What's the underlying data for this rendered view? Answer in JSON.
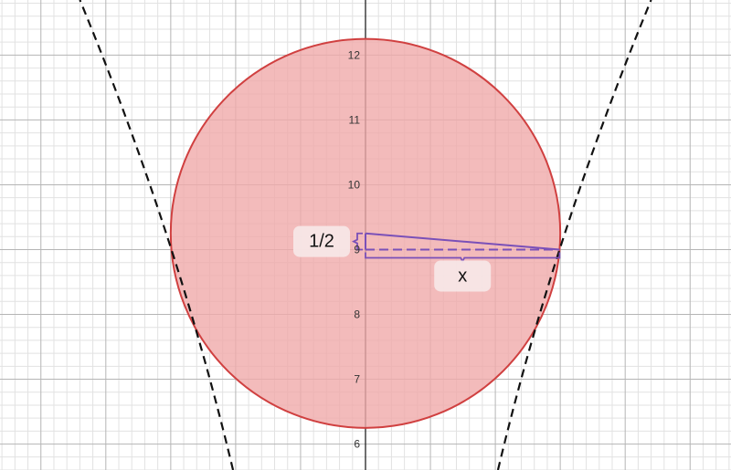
{
  "graph": {
    "y_tick_labels": [
      "6",
      "7",
      "8",
      "9",
      "10",
      "11",
      "12"
    ],
    "y_axis_range": [
      5.6,
      12.85
    ],
    "x_axis_range": [
      -5.63,
      5.63
    ],
    "major_grid_step": 1,
    "minor_grid_step": 0.2
  },
  "circle": {
    "center": [
      0,
      9.25
    ],
    "radius": 3,
    "fill_color": "#f0aaaa",
    "stroke_color": "#d04040"
  },
  "dashed_curves": {
    "color": "#111111",
    "style": "dashed"
  },
  "triangle": {
    "color": "#7a50b8"
  },
  "labels": {
    "half_label": "1/2",
    "x_label": "x"
  },
  "colors": {
    "grid_major": "#b5b5b5",
    "grid_minor": "#e2e2e2",
    "axis": "#222222"
  }
}
